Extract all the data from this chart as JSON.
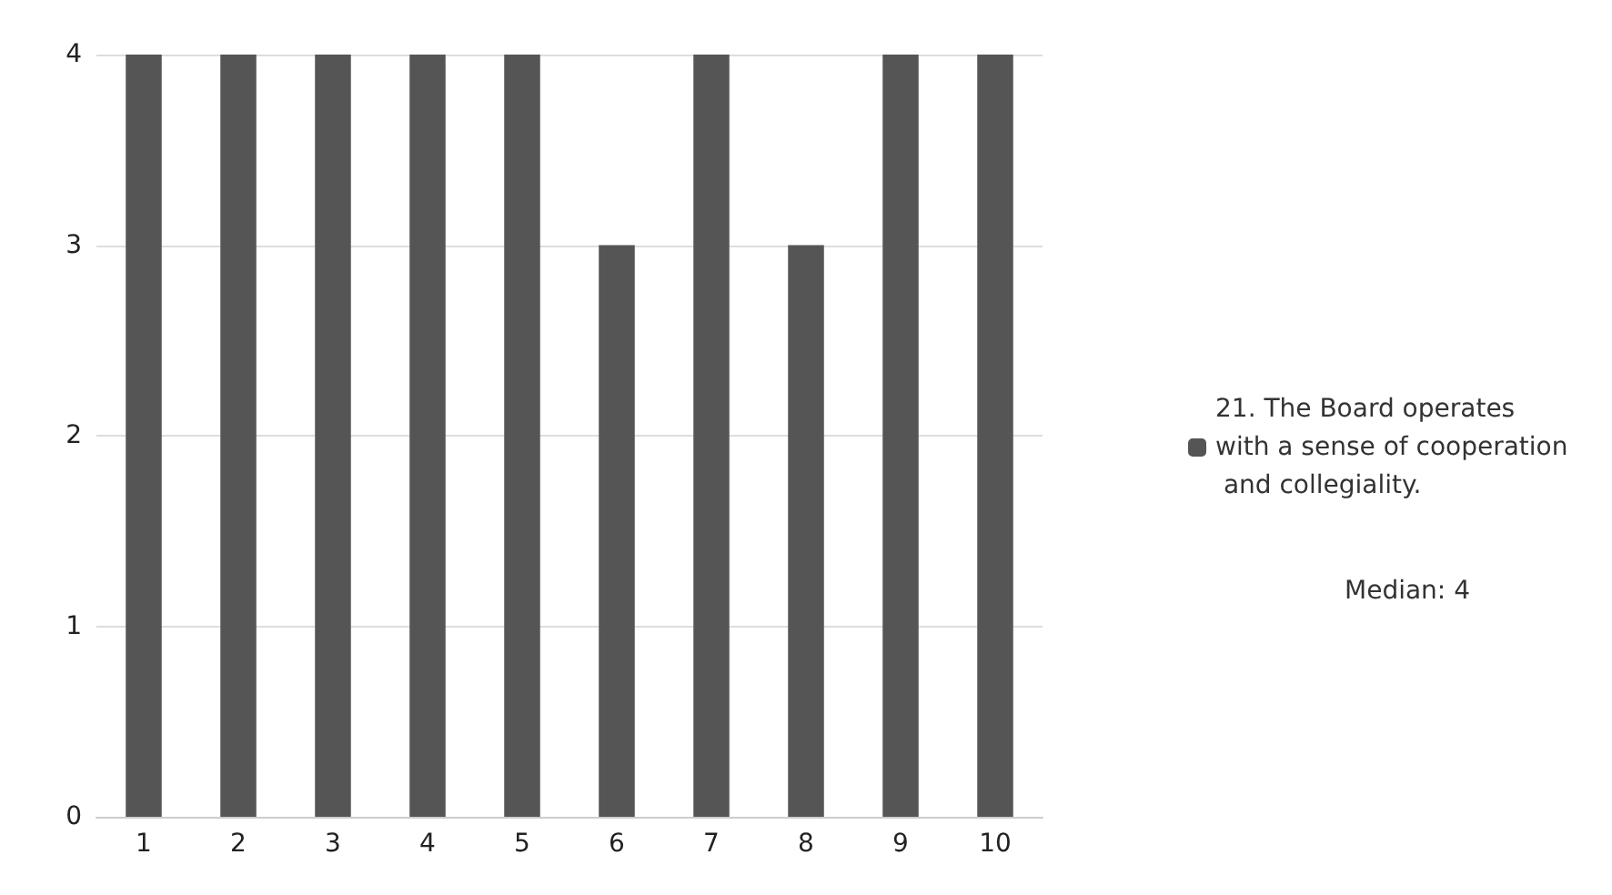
{
  "chart_data": {
    "type": "bar",
    "categories": [
      "1",
      "2",
      "3",
      "4",
      "5",
      "6",
      "7",
      "8",
      "9",
      "10"
    ],
    "series": [
      {
        "name": "21. The Board operates with a sense of cooperation and collegiality.",
        "color": "#555555",
        "values": [
          4,
          4,
          4,
          4,
          4,
          3,
          4,
          3,
          4,
          4
        ]
      }
    ],
    "ylim": [
      0,
      4
    ],
    "yticks": [
      0,
      1,
      2,
      3,
      4
    ],
    "grid": "y",
    "legend": "right",
    "annotations": [
      "Median: 4"
    ]
  }
}
